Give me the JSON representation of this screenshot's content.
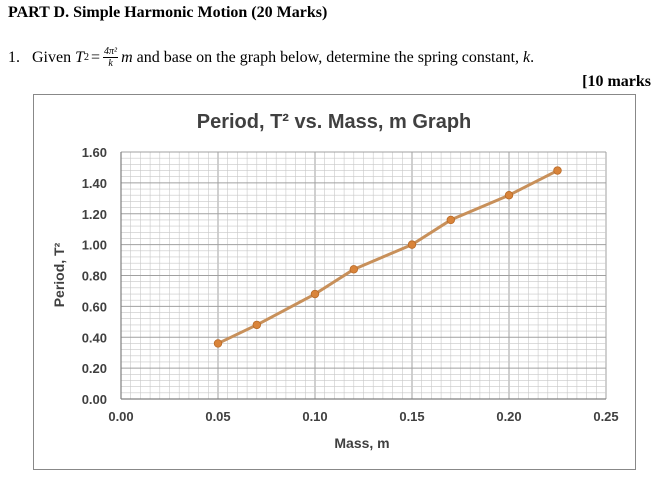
{
  "header": {
    "title": "PART D. Simple Harmonic Motion (20 Marks)"
  },
  "question": {
    "number": "1.",
    "given": "Given",
    "T_var": "T",
    "T_exp": "2",
    "equals": "=",
    "frac_num": "4π²",
    "frac_den": "k",
    "m_var": "m",
    "text": "and base on the graph below, determine the spring constant,",
    "k_var": "k",
    "end": ".",
    "marks": "[10 marks"
  },
  "colors": {
    "line": "#c8905a",
    "marker": "#d9843a",
    "grid": "#c8c8c8",
    "axis": "#808080",
    "text": "#404040"
  },
  "chart_data": {
    "type": "line",
    "title": "Period, T² vs. Mass, m Graph",
    "xlabel": "Mass, m",
    "ylabel": "Period, T²",
    "xlim": [
      0,
      0.25
    ],
    "ylim": [
      0,
      1.6
    ],
    "x_ticks": [
      "0.00",
      "0.05",
      "0.10",
      "0.15",
      "0.20",
      "0.25"
    ],
    "y_ticks": [
      "0.00",
      "0.20",
      "0.40",
      "0.60",
      "0.80",
      "1.00",
      "1.20",
      "1.40",
      "1.60"
    ],
    "grid": true,
    "x": [
      0.05,
      0.07,
      0.1,
      0.12,
      0.15,
      0.17,
      0.2,
      0.225
    ],
    "y": [
      0.36,
      0.48,
      0.68,
      0.84,
      1.0,
      1.16,
      1.32,
      1.48
    ]
  }
}
